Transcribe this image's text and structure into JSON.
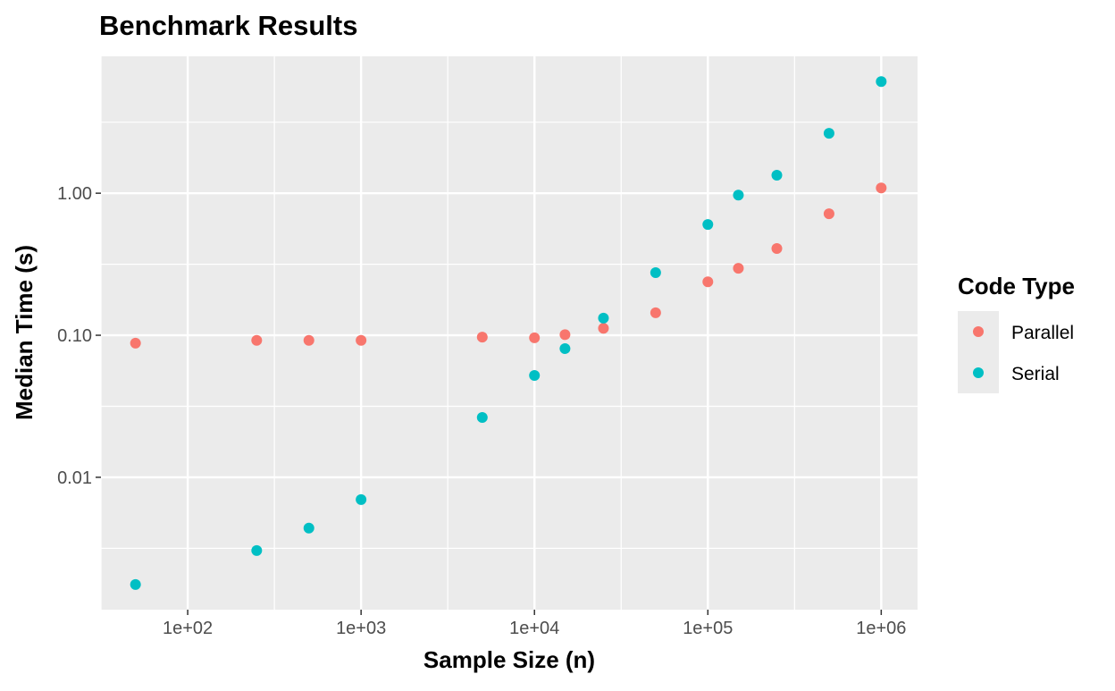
{
  "chart_data": {
    "type": "scatter",
    "title": "Benchmark Results",
    "xlabel": "Sample Size (n)",
    "ylabel": "Median Time (s)",
    "x_scale": "log10",
    "y_scale": "log10",
    "xlim": [
      31.6,
      1620000
    ],
    "ylim": [
      0.00117,
      9.2
    ],
    "grid": true,
    "x_ticks": [
      {
        "value": 100,
        "label": "1e+02"
      },
      {
        "value": 1000,
        "label": "1e+03"
      },
      {
        "value": 10000,
        "label": "1e+04"
      },
      {
        "value": 100000,
        "label": "1e+05"
      },
      {
        "value": 1000000,
        "label": "1e+06"
      }
    ],
    "y_ticks": [
      {
        "value": 0.01,
        "label": "0.01"
      },
      {
        "value": 0.1,
        "label": "0.10"
      },
      {
        "value": 1,
        "label": "1.00"
      }
    ],
    "legend": {
      "title": "Code Type",
      "placement": "right"
    },
    "x": [
      50,
      250,
      500,
      1000,
      5000,
      10000,
      15000,
      25000,
      50000,
      100000,
      150000,
      250000,
      500000,
      1000000
    ],
    "series": [
      {
        "name": "Parallel",
        "color": "#F8766D",
        "values": [
          0.088,
          0.092,
          0.092,
          0.092,
          0.097,
          0.096,
          0.101,
          0.112,
          0.144,
          0.238,
          0.296,
          0.408,
          0.717,
          1.09
        ]
      },
      {
        "name": "Serial",
        "color": "#00BFC4",
        "values": [
          0.00176,
          0.00305,
          0.00439,
          0.00697,
          0.0264,
          0.0521,
          0.0805,
          0.132,
          0.276,
          0.602,
          0.97,
          1.34,
          2.64,
          6.11
        ]
      }
    ]
  }
}
